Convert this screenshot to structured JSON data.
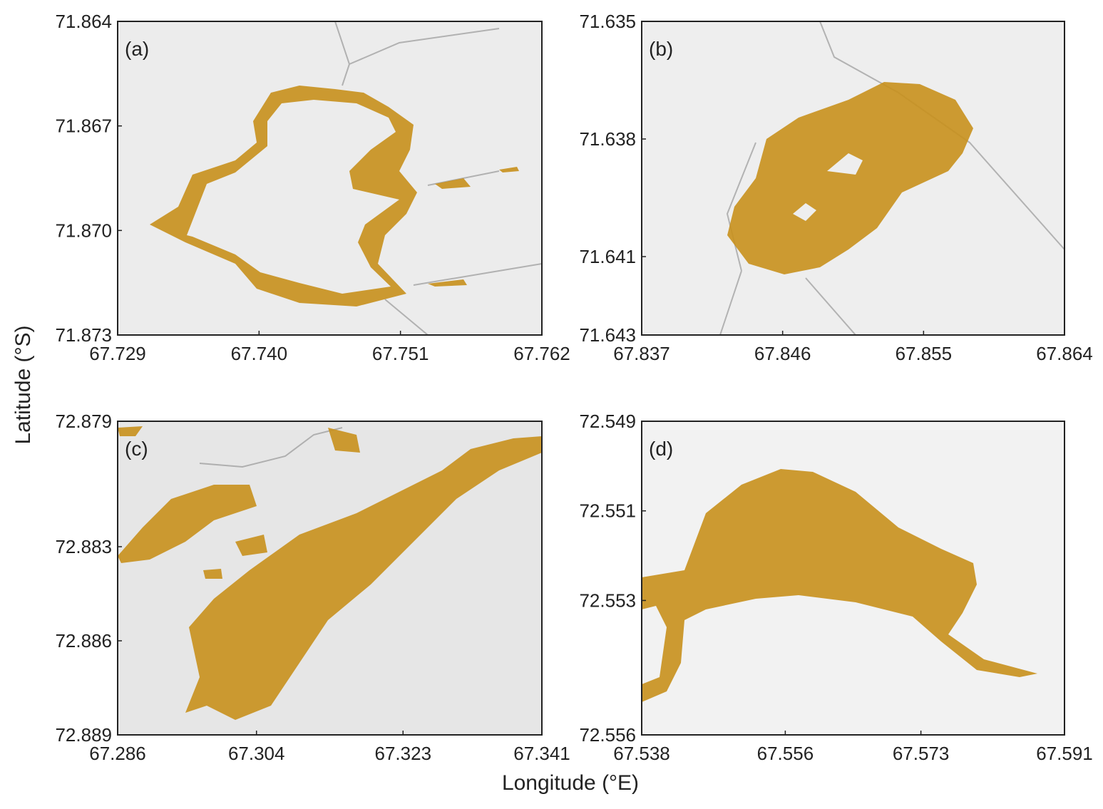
{
  "figure": {
    "xlabel": "Longitude (°E)",
    "ylabel": "Latitude (°S)"
  },
  "chart_data": [
    {
      "type": "image",
      "title": "(a)",
      "xlim": [
        67.729,
        67.762
      ],
      "xticks": [
        67.729,
        {
          "value": 67.74,
          "label": "67.740"
        },
        67.751,
        67.762
      ],
      "ylim": [
        71.873,
        71.864
      ],
      "yticks": [
        71.864,
        71.867,
        {
          "value": 71.87,
          "label": "71.870"
        },
        71.873
      ]
    },
    {
      "type": "image",
      "title": "(b)",
      "xlim": [
        67.837,
        67.864
      ],
      "xticks": [
        67.837,
        67.846,
        67.855,
        67.864
      ],
      "ylim": [
        71.643,
        71.635
      ],
      "yticks": [
        71.635,
        71.638,
        71.641,
        71.643
      ]
    },
    {
      "type": "image",
      "title": "(c)",
      "xlim": [
        67.286,
        67.341
      ],
      "xticks": [
        67.286,
        67.304,
        67.323,
        67.341
      ],
      "ylim": [
        72.889,
        72.879
      ],
      "yticks": [
        72.879,
        72.883,
        72.886,
        72.889
      ]
    },
    {
      "type": "image",
      "title": "(d)",
      "xlim": [
        67.538,
        67.591
      ],
      "xticks": [
        67.538,
        67.556,
        67.573,
        67.591
      ],
      "ylim": [
        72.556,
        72.549
      ],
      "yticks": [
        72.549,
        72.551,
        72.553,
        72.556
      ]
    }
  ]
}
